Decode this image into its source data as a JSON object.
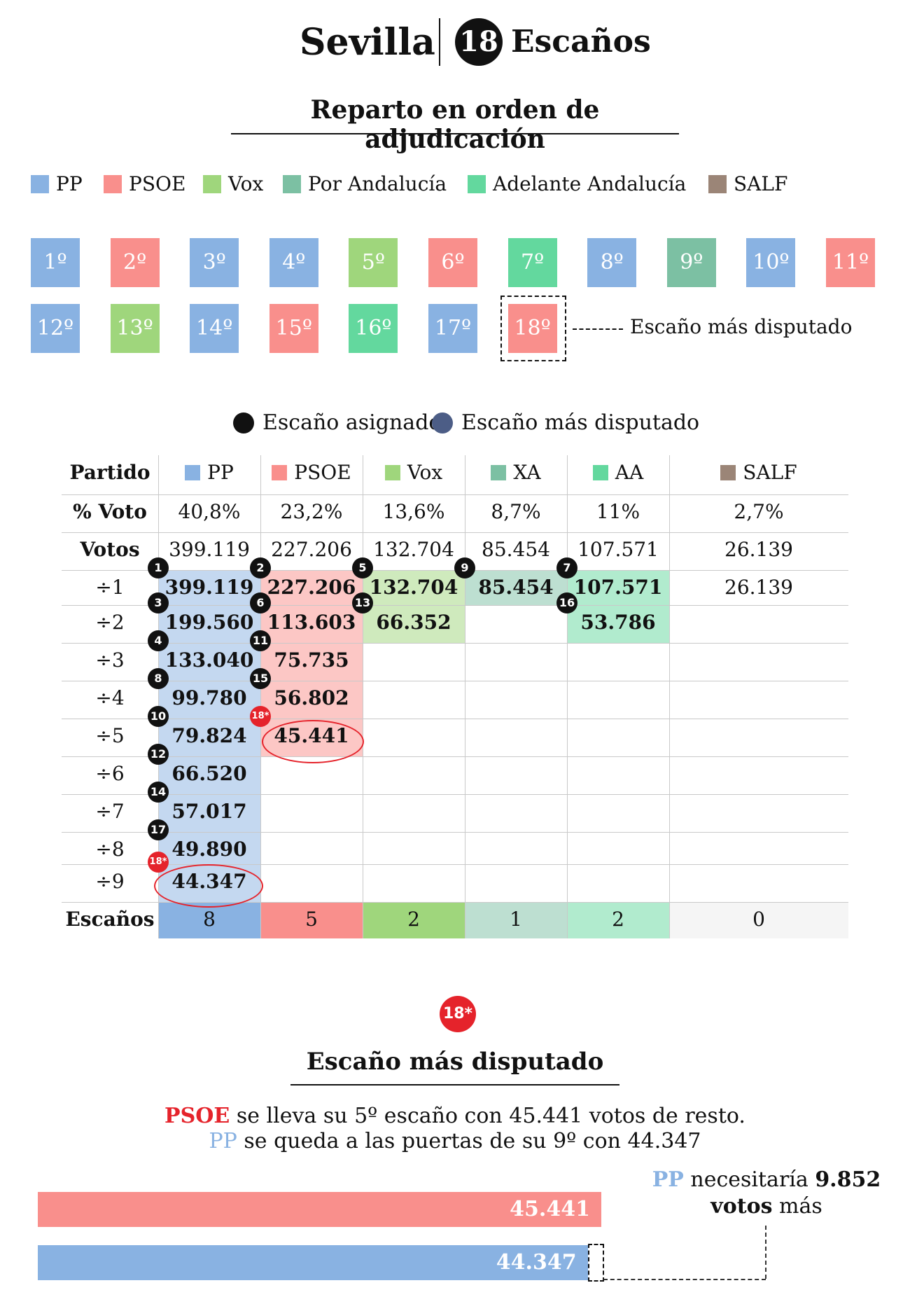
{
  "header": {
    "city": "Sevilla",
    "seats_number": "18",
    "seats_label": "Escaños",
    "subtitle": "Reparto en orden de adjudicación"
  },
  "legend": [
    {
      "label": "PP",
      "color": "#89b2e2"
    },
    {
      "label": "PSOE",
      "color": "#f98f8c"
    },
    {
      "label": "Vox",
      "color": "#9fd67c"
    },
    {
      "label": "Por Andalucía",
      "color": "#7cc0a3"
    },
    {
      "label": "Adelante Andalucía",
      "color": "#63d89e"
    },
    {
      "label": "SALF",
      "color": "#9b8577"
    }
  ],
  "seat_order": [
    {
      "label": "1º",
      "party": "PP"
    },
    {
      "label": "2º",
      "party": "PSOE"
    },
    {
      "label": "3º",
      "party": "PP"
    },
    {
      "label": "4º",
      "party": "PP"
    },
    {
      "label": "5º",
      "party": "Vox"
    },
    {
      "label": "6º",
      "party": "PSOE"
    },
    {
      "label": "7º",
      "party": "AA"
    },
    {
      "label": "8º",
      "party": "PP"
    },
    {
      "label": "9º",
      "party": "XA"
    },
    {
      "label": "10º",
      "party": "PP"
    },
    {
      "label": "11º",
      "party": "PSOE"
    },
    {
      "label": "12º",
      "party": "PP"
    },
    {
      "label": "13º",
      "party": "Vox"
    },
    {
      "label": "14º",
      "party": "PP"
    },
    {
      "label": "15º",
      "party": "PSOE"
    },
    {
      "label": "16º",
      "party": "AA"
    },
    {
      "label": "17º",
      "party": "PP"
    },
    {
      "label": "18º",
      "party": "PSOE"
    }
  ],
  "disputed_label": "Escaño más disputado",
  "dot_legend": {
    "assigned": "Escaño asignado",
    "disputed": "Escaño más disputado"
  },
  "table": {
    "row_headers": [
      "Partido",
      "% Voto",
      "Votos",
      "÷1",
      "÷2",
      "÷3",
      "÷4",
      "÷5",
      "÷6",
      "÷7",
      "÷8",
      "÷9",
      "Escaños"
    ],
    "parties": [
      {
        "name": "PP",
        "color": "#89b2e2",
        "pct": "40,8%",
        "votes": "399.119",
        "quotients": [
          "399.119",
          "199.560",
          "133.040",
          "99.780",
          "79.824",
          "66.520",
          "57.017",
          "49.890",
          "44.347"
        ],
        "seats": "8"
      },
      {
        "name": "PSOE",
        "color": "#f98f8c",
        "pct": "23,2%",
        "votes": "227.206",
        "quotients": [
          "227.206",
          "113.603",
          "75.735",
          "56.802",
          "45.441"
        ],
        "seats": "5"
      },
      {
        "name": "Vox",
        "color": "#9fd67c",
        "pct": "13,6%",
        "votes": "132.704",
        "quotients": [
          "132.704",
          "66.352"
        ],
        "seats": "2"
      },
      {
        "name": "XA",
        "color": "#7cc0a3",
        "pct": "8,7%",
        "votes": "85.454",
        "quotients": [
          "85.454"
        ],
        "seats": "1"
      },
      {
        "name": "AA",
        "color": "#63d89e",
        "pct": "11%",
        "votes": "107.571",
        "quotients": [
          "107.571",
          "53.786"
        ],
        "seats": "2"
      },
      {
        "name": "SALF",
        "color": "#9b8577",
        "pct": "2,7%",
        "votes": "26.139",
        "quotients": [
          "26.139"
        ],
        "seats": "0"
      }
    ]
  },
  "badges": [
    {
      "text": "1",
      "party": 0,
      "row": 0
    },
    {
      "text": "2",
      "party": 1,
      "row": 0
    },
    {
      "text": "5",
      "party": 2,
      "row": 0
    },
    {
      "text": "9",
      "party": 3,
      "row": 0
    },
    {
      "text": "7",
      "party": 4,
      "row": 0
    },
    {
      "text": "3",
      "party": 0,
      "row": 1
    },
    {
      "text": "6",
      "party": 1,
      "row": 1
    },
    {
      "text": "13",
      "party": 2,
      "row": 1
    },
    {
      "text": "16",
      "party": 4,
      "row": 1
    },
    {
      "text": "4",
      "party": 0,
      "row": 2
    },
    {
      "text": "11",
      "party": 1,
      "row": 2
    },
    {
      "text": "8",
      "party": 0,
      "row": 3
    },
    {
      "text": "15",
      "party": 1,
      "row": 3
    },
    {
      "text": "10",
      "party": 0,
      "row": 4
    },
    {
      "text": "18*",
      "party": 1,
      "row": 4,
      "red": true
    },
    {
      "text": "12",
      "party": 0,
      "row": 5
    },
    {
      "text": "14",
      "party": 0,
      "row": 6
    },
    {
      "text": "17",
      "party": 0,
      "row": 7
    },
    {
      "text": "18*",
      "party": 0,
      "row": 8,
      "red": true
    }
  ],
  "bottom": {
    "badge": "18*",
    "title": "Escaño más disputado",
    "line1_party": "PSOE",
    "line1_rest": " se lleva su 5º escaño con 45.441 votos de resto.",
    "line2_party": "PP",
    "line2_rest": " se queda a las puertas de su 9º con 44.347",
    "note_party": "PP",
    "note_mid": " necesitaría ",
    "note_bold1": "9.852",
    "note_bold2": "votos",
    "note_end": " más",
    "bars": [
      {
        "label": "45.441",
        "value": 45441,
        "color": "#f98f8c"
      },
      {
        "label": "44.347",
        "value": 44347,
        "color": "#89b2e2"
      }
    ],
    "bar_max": 45441
  },
  "colors": {
    "red": "#e5232b",
    "pp_text": "#89b2e2",
    "disputed_dot": "#4c5d86"
  }
}
